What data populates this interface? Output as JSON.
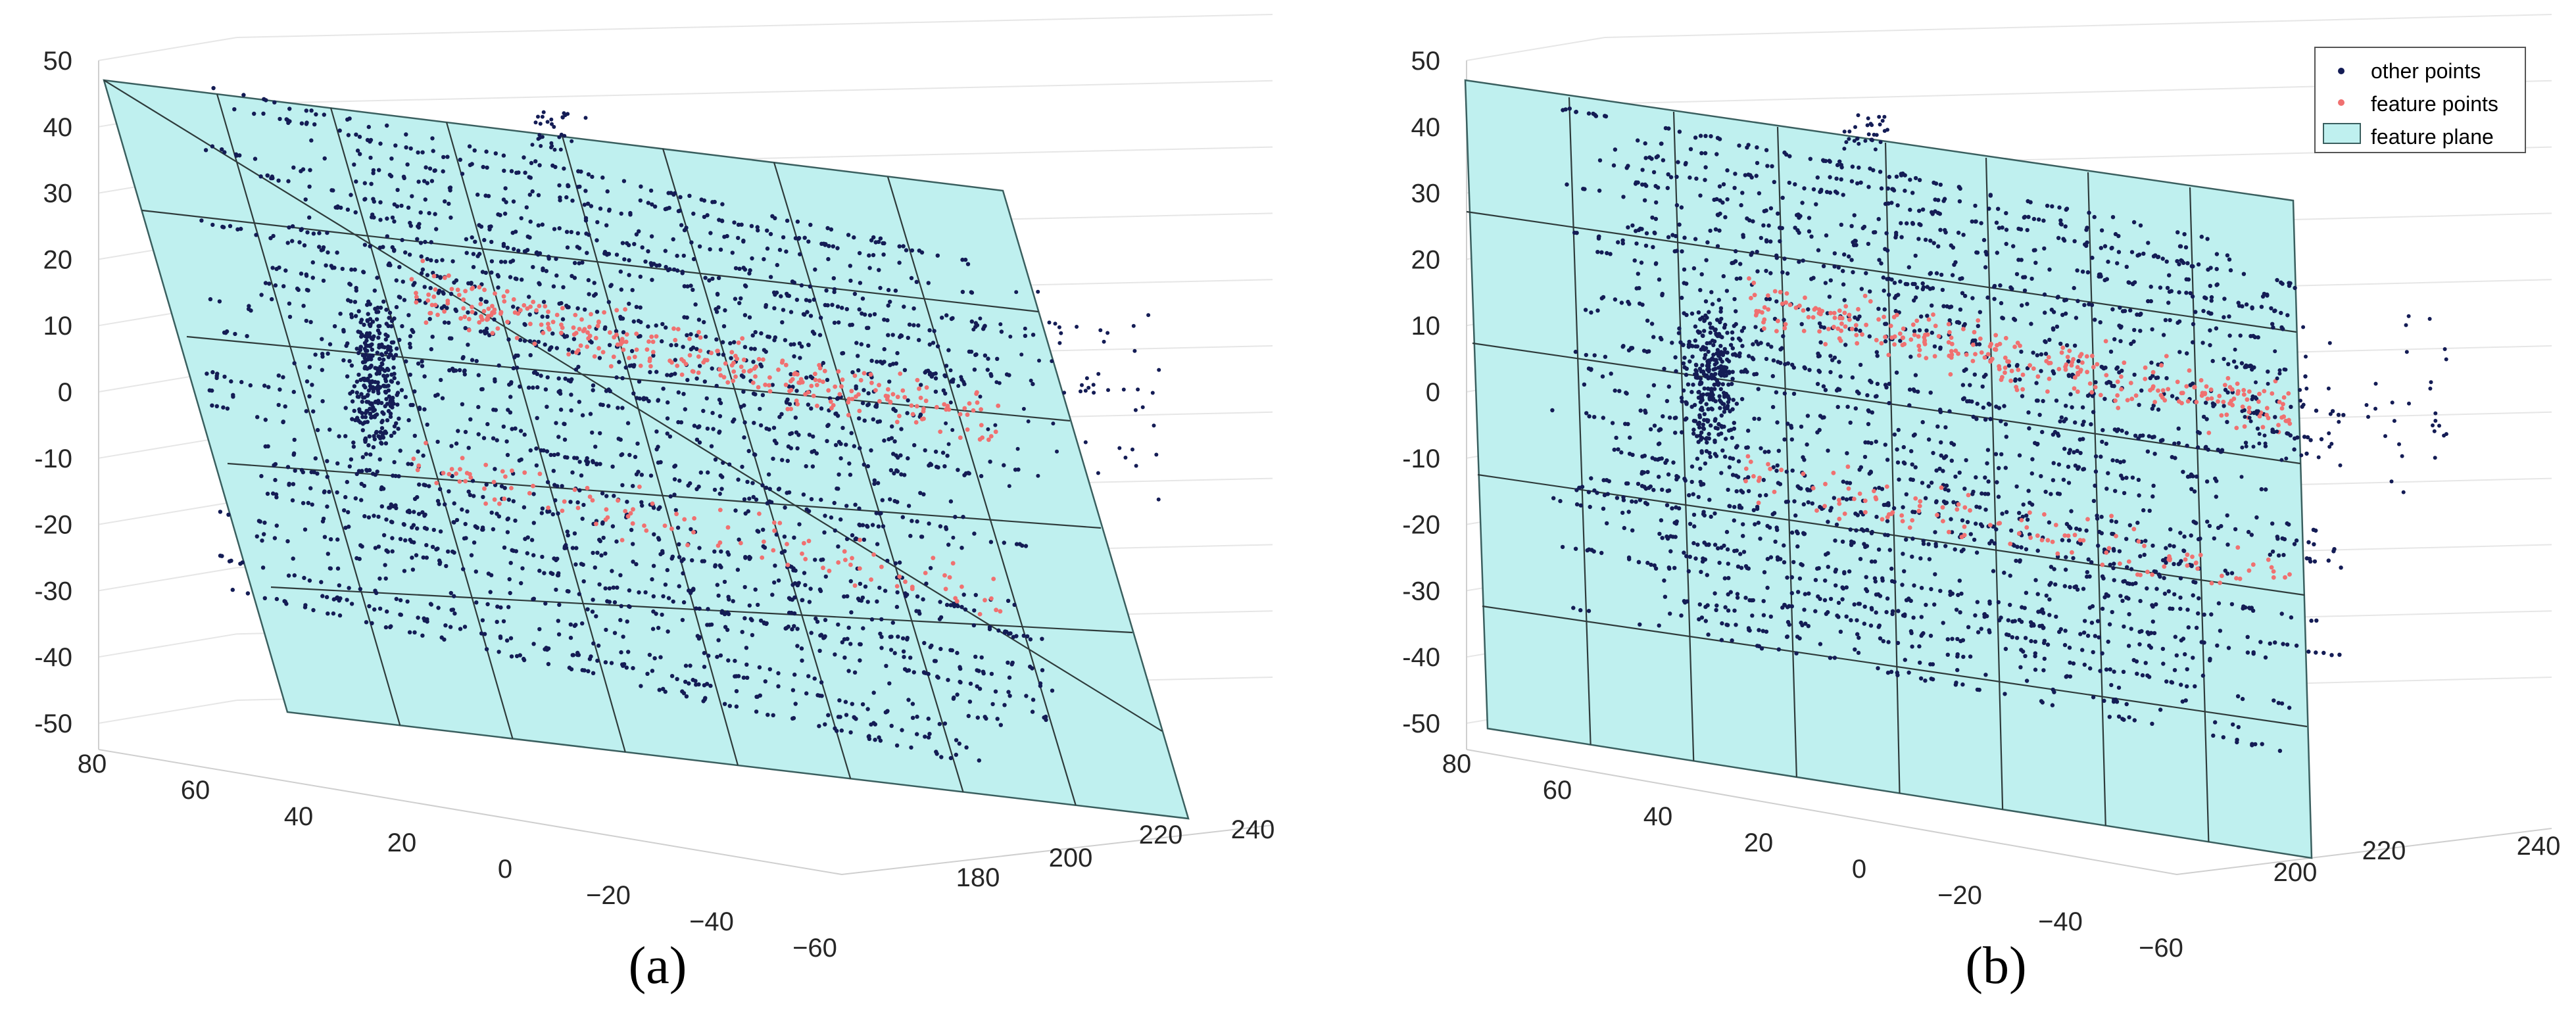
{
  "chart_data": [
    {
      "type": "scatter3d",
      "panel": "a",
      "caption": "(a)",
      "zlim": [
        -50,
        50
      ],
      "z_ticks": [
        "50",
        "40",
        "30",
        "20",
        "10",
        "0",
        "-10",
        "-20",
        "-30",
        "-40",
        "-50"
      ],
      "x_ticks": [
        "80",
        "60",
        "40",
        "20",
        "0",
        "−20",
        "−40",
        "−60"
      ],
      "y_ticks": [
        "180",
        "200",
        "220",
        "240"
      ],
      "grid": true,
      "legend": false,
      "series": [
        {
          "name": "other points",
          "color": "#141c55"
        },
        {
          "name": "feature points",
          "color": "#f07070"
        },
        {
          "name": "feature plane",
          "color": "#bff0ef"
        }
      ]
    },
    {
      "type": "scatter3d",
      "panel": "b",
      "caption": "(b)",
      "zlim": [
        -50,
        50
      ],
      "z_ticks": [
        "50",
        "40",
        "30",
        "20",
        "10",
        "0",
        "-10",
        "-20",
        "-30",
        "-40",
        "-50"
      ],
      "x_ticks": [
        "80",
        "60",
        "40",
        "20",
        "0",
        "−20",
        "−40",
        "−60"
      ],
      "y_ticks": [
        "200",
        "220",
        "240"
      ],
      "grid": true,
      "legend": true,
      "legend_position": "top-right",
      "legend_entries": [
        "other points",
        "feature points",
        "feature plane"
      ],
      "series": [
        {
          "name": "other points",
          "color": "#141c55"
        },
        {
          "name": "feature points",
          "color": "#f07070"
        },
        {
          "name": "feature plane",
          "color": "#bff0ef"
        }
      ]
    }
  ]
}
